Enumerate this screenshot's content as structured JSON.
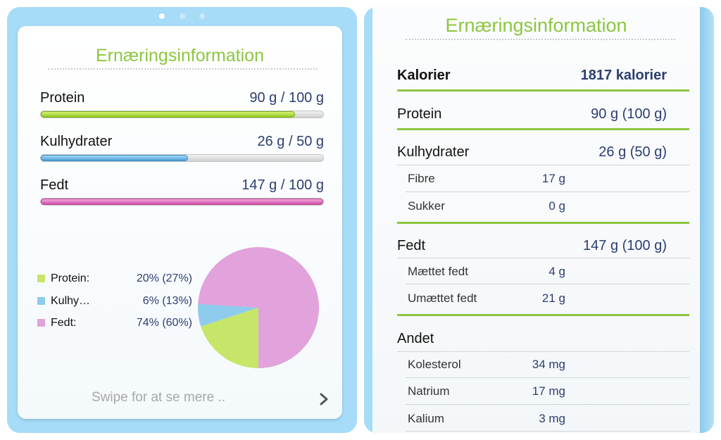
{
  "pager": {
    "pages": 3,
    "active": 0
  },
  "summary": {
    "title": "Ernæringsinformation",
    "nutrients": [
      {
        "label": "Protein",
        "value": "90 g / 100 g",
        "progress": 0.9,
        "style": "fill-green"
      },
      {
        "label": "Kulhydrater",
        "value": "26 g / 50 g",
        "progress": 0.52,
        "style": "fill-blue"
      },
      {
        "label": "Fedt",
        "value": "147 g / 100 g",
        "progress": 1.0,
        "style": "fill-pink"
      }
    ],
    "legend": [
      {
        "name": "Protein:",
        "pct": "20% (27%)",
        "color": "#c6e66a"
      },
      {
        "name": "Kulhy…",
        "pct": "6% (13%)",
        "color": "#8ecbec"
      },
      {
        "name": "Fedt:",
        "pct": "74% (60%)",
        "color": "#e2a2db"
      }
    ],
    "swipe_hint": "Swipe for at se mere ..",
    "chevron_icon": "chevron-right-icon"
  },
  "chart_data": {
    "type": "pie",
    "categories": [
      "Protein",
      "Kulhy…",
      "Fedt"
    ],
    "values": [
      20,
      6,
      74
    ],
    "colors": [
      "#c6e66a",
      "#8ecbec",
      "#e2a2db"
    ],
    "start_angle_deg": 90,
    "direction": "clockwise"
  },
  "details": {
    "title": "Ernæringsinformation",
    "calories": {
      "label": "Kalorier",
      "value": "1817 kalorier"
    },
    "protein": {
      "label": "Protein",
      "value": "90 g (100 g)"
    },
    "carbs": {
      "label": "Kulhydrater",
      "value": "26 g (50 g)",
      "sub": [
        {
          "label": "Fibre",
          "value": "17 g"
        },
        {
          "label": "Sukker",
          "value": "0 g"
        }
      ]
    },
    "fat": {
      "label": "Fedt",
      "value": "147 g (100 g)",
      "sub": [
        {
          "label": "Mættet fedt",
          "value": "4 g"
        },
        {
          "label": "Umættet fedt",
          "value": "21 g"
        }
      ]
    },
    "other": {
      "label": "Andet",
      "sub": [
        {
          "label": "Kolesterol",
          "value": "34 mg"
        },
        {
          "label": "Natrium",
          "value": "17 mg"
        },
        {
          "label": "Kalium",
          "value": "3 mg"
        }
      ]
    }
  }
}
